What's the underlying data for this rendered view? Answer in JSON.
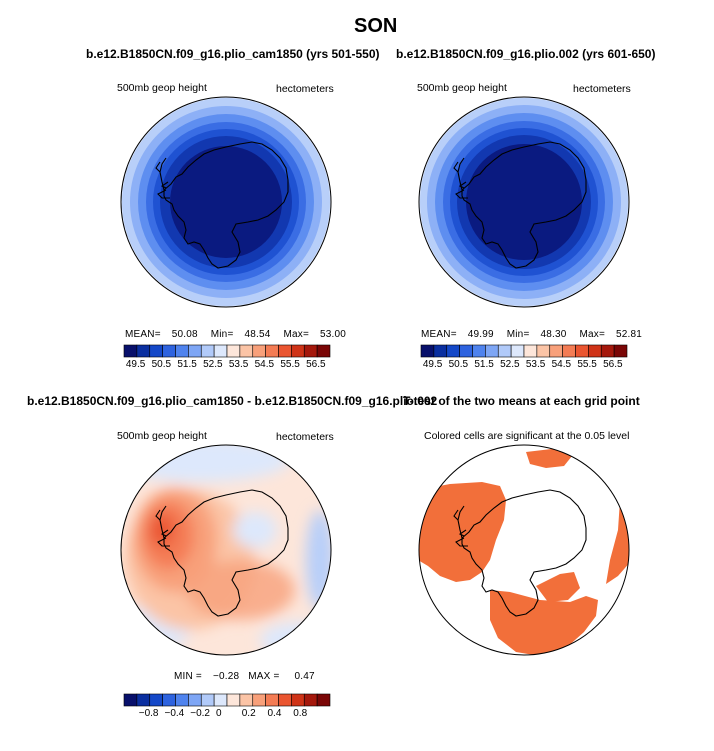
{
  "figure": {
    "title": "SON"
  },
  "panels": [
    {
      "title": "b.e12.B1850CN.f09_g16.plio_cam1850 (yrs 501-550)",
      "variable_label": "500mb geop height",
      "units_label": "hectometers",
      "stats": {
        "mean_label": "MEAN=",
        "mean": "50.08",
        "min_label": "Min=",
        "min": "48.54",
        "max_label": "Max=",
        "max": "53.00"
      },
      "colorbar": {
        "labels": [
          "49.5",
          "50.5",
          "51.5",
          "52.5",
          "53.5",
          "54.5",
          "55.5",
          "56.5"
        ]
      }
    },
    {
      "title": "b.e12.B1850CN.f09_g16.plio.002 (yrs 601-650)",
      "variable_label": "500mb geop height",
      "units_label": "hectometers",
      "stats": {
        "mean_label": "MEAN=",
        "mean": "49.99",
        "min_label": "Min=",
        "min": "48.30",
        "max_label": "Max=",
        "max": "52.81"
      },
      "colorbar": {
        "labels": [
          "49.5",
          "50.5",
          "51.5",
          "52.5",
          "53.5",
          "54.5",
          "55.5",
          "56.5"
        ]
      }
    },
    {
      "title": "b.e12.B1850CN.f09_g16.plio_cam1850 - b.e12.B1850CN.f09_g16.plio.002",
      "variable_label": "500mb geop height",
      "units_label": "hectometers",
      "stats": {
        "min_label": "MIN =",
        "min": "−0.28",
        "max_label": "MAX =",
        "max": "0.47"
      },
      "colorbar": {
        "labels": [
          "−0.8",
          "−0.4",
          "−0.2",
          "0",
          "0.2",
          "0.4",
          "0.8"
        ]
      }
    },
    {
      "title": "T-test of the two means at each grid point",
      "subtitle": "Colored cells are significant at the 0.05 level"
    }
  ],
  "colors": {
    "colorbar_levels": [
      "#08106b",
      "#0a2fa0",
      "#1448c8",
      "#2e63df",
      "#4f83ee",
      "#7ea6f5",
      "#b1caf9",
      "#dde8fc",
      "#fde6da",
      "#fbc4a6",
      "#f8a07a",
      "#f47c54",
      "#ea5530",
      "#cf3317",
      "#a5180c",
      "#7a0606"
    ],
    "significant": "#f26f3a",
    "land_outline": "#000000"
  }
}
